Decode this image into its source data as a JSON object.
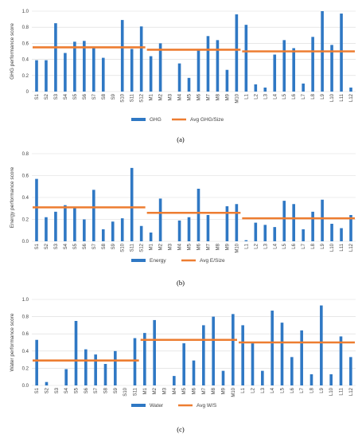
{
  "colors": {
    "bar": "#2f78c4",
    "avg": "#ed7d31",
    "grid": "#d9d9d9",
    "text": "#404040"
  },
  "chart_data": [
    {
      "type": "bar",
      "panel_label": "(a)",
      "ylabel": "GHG performance score",
      "ylim": [
        0,
        1.0
      ],
      "yticks": [
        "0",
        "0.2",
        "0.4",
        "0.6",
        "0.8",
        "1.0"
      ],
      "grid": true,
      "legend_position": "bottom",
      "categories": [
        "S1",
        "S2",
        "S3",
        "S4",
        "S5",
        "S6",
        "S7",
        "S8",
        "S9",
        "S10",
        "S11",
        "S12",
        "M1",
        "M2",
        "M3",
        "M4",
        "M5",
        "M6",
        "M7",
        "M8",
        "M9",
        "M10",
        "L1",
        "L2",
        "L3",
        "L4",
        "L5",
        "L6",
        "L7",
        "L8",
        "L9",
        "L10",
        "L11",
        "L12"
      ],
      "series": [
        {
          "name": "GHG",
          "values": [
            0.39,
            0.39,
            0.85,
            0.48,
            0.62,
            0.63,
            0.55,
            0.42,
            0.0,
            0.89,
            0.53,
            0.81,
            0.44,
            0.6,
            0.0,
            0.35,
            0.17,
            0.53,
            0.69,
            0.64,
            0.27,
            0.96,
            0.83,
            0.09,
            0.05,
            0.46,
            0.64,
            0.54,
            0.1,
            0.68,
            1.0,
            0.58,
            0.97,
            0.05
          ]
        }
      ],
      "averages": {
        "name": "Avg GHG/Size",
        "segments": [
          {
            "from": "S1",
            "to": "S12",
            "value": 0.55
          },
          {
            "from": "M1",
            "to": "M10",
            "value": 0.52
          },
          {
            "from": "L1",
            "to": "L12",
            "value": 0.5
          }
        ]
      }
    },
    {
      "type": "bar",
      "panel_label": "(b)",
      "ylabel": "Energy performance score",
      "ylim": [
        0,
        0.8
      ],
      "yticks": [
        "0.0",
        "0.2",
        "0.4",
        "0.6",
        "0.8"
      ],
      "grid": true,
      "legend_position": "bottom",
      "categories": [
        "S1",
        "S2",
        "S3",
        "S4",
        "S5",
        "S6",
        "S7",
        "S8",
        "S9",
        "S10",
        "S11",
        "S12",
        "M1",
        "M2",
        "M3",
        "M4",
        "M5",
        "M6",
        "M7",
        "M8",
        "M9",
        "M10",
        "L1",
        "L2",
        "L3",
        "L4",
        "L5",
        "L6",
        "L7",
        "L8",
        "L9",
        "L10",
        "L11",
        "L12"
      ],
      "series": [
        {
          "name": "Energy",
          "values": [
            0.57,
            0.22,
            0.27,
            0.33,
            0.31,
            0.2,
            0.47,
            0.11,
            0.18,
            0.21,
            0.67,
            0.14,
            0.08,
            0.39,
            0.0,
            0.19,
            0.22,
            0.48,
            0.24,
            0.0,
            0.32,
            0.34,
            0.01,
            0.17,
            0.15,
            0.13,
            0.37,
            0.34,
            0.11,
            0.27,
            0.38,
            0.16,
            0.12,
            0.24
          ]
        }
      ],
      "averages": {
        "name": "Avg E/Size",
        "segments": [
          {
            "from": "S1",
            "to": "S12",
            "value": 0.31
          },
          {
            "from": "M1",
            "to": "M10",
            "value": 0.26
          },
          {
            "from": "L1",
            "to": "L12",
            "value": 0.21
          }
        ]
      }
    },
    {
      "type": "bar",
      "panel_label": "(c)",
      "ylabel": "Water performance score",
      "ylim": [
        0,
        1.0
      ],
      "yticks": [
        "0.0",
        "0.2",
        "0.4",
        "0.6",
        "0.8",
        "1.0"
      ],
      "grid": true,
      "legend_position": "bottom",
      "categories": [
        "S1",
        "S2",
        "S3",
        "S4",
        "S5",
        "S6",
        "S7",
        "S8",
        "S9",
        "S10",
        "S11",
        "M1",
        "M2",
        "M3",
        "M4",
        "M5",
        "M6",
        "M7",
        "M8",
        "M9",
        "M10",
        "L1",
        "L2",
        "L3",
        "L4",
        "L5",
        "L6",
        "L7",
        "L8",
        "L9",
        "L10",
        "L11",
        "L12"
      ],
      "series": [
        {
          "name": "Water",
          "values": [
            0.53,
            0.04,
            0.0,
            0.19,
            0.75,
            0.42,
            0.36,
            0.25,
            0.4,
            0.0,
            0.55,
            0.61,
            0.76,
            0.0,
            0.11,
            0.49,
            0.29,
            0.7,
            0.8,
            0.17,
            0.83,
            0.7,
            0.49,
            0.17,
            0.87,
            0.73,
            0.33,
            0.64,
            0.13,
            0.93,
            0.13,
            0.57,
            0.33
          ]
        }
      ],
      "averages": {
        "name": "Avg W/S",
        "segments": [
          {
            "from": "S1",
            "to": "S11",
            "value": 0.29
          },
          {
            "from": "M1",
            "to": "M10",
            "value": 0.53
          },
          {
            "from": "L1",
            "to": "L12",
            "value": 0.5
          }
        ]
      }
    }
  ]
}
